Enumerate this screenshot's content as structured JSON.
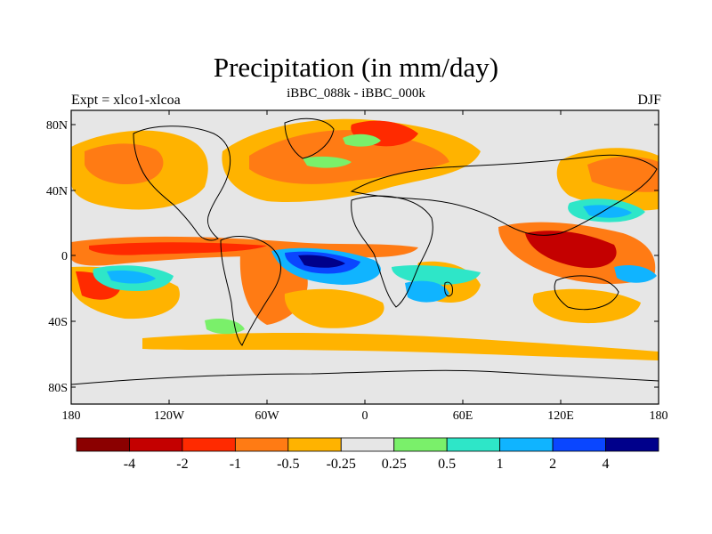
{
  "title": "Precipitation (in mm/day)",
  "subtitle": "iBBC_088k - iBBC_000k",
  "left_label": "Expt = xlco1-xlcoa",
  "right_label": "DJF",
  "lat_ticks": [
    "80N",
    "40N",
    "0",
    "40S",
    "80S"
  ],
  "lon_ticks": [
    "180",
    "120W",
    "60W",
    "0",
    "60E",
    "120E",
    "180"
  ],
  "colorbar": {
    "colors": [
      "#8b0000",
      "#c40000",
      "#ff2a00",
      "#ff7b14",
      "#ffb300",
      "#e6e6e6",
      "#7af06a",
      "#2ee6c8",
      "#10b4ff",
      "#0a46ff",
      "#00008b"
    ],
    "labels": [
      "-4",
      "-2",
      "-1",
      "-0.5",
      "-0.25",
      "0.25",
      "0.5",
      "1",
      "2",
      "4"
    ]
  }
}
